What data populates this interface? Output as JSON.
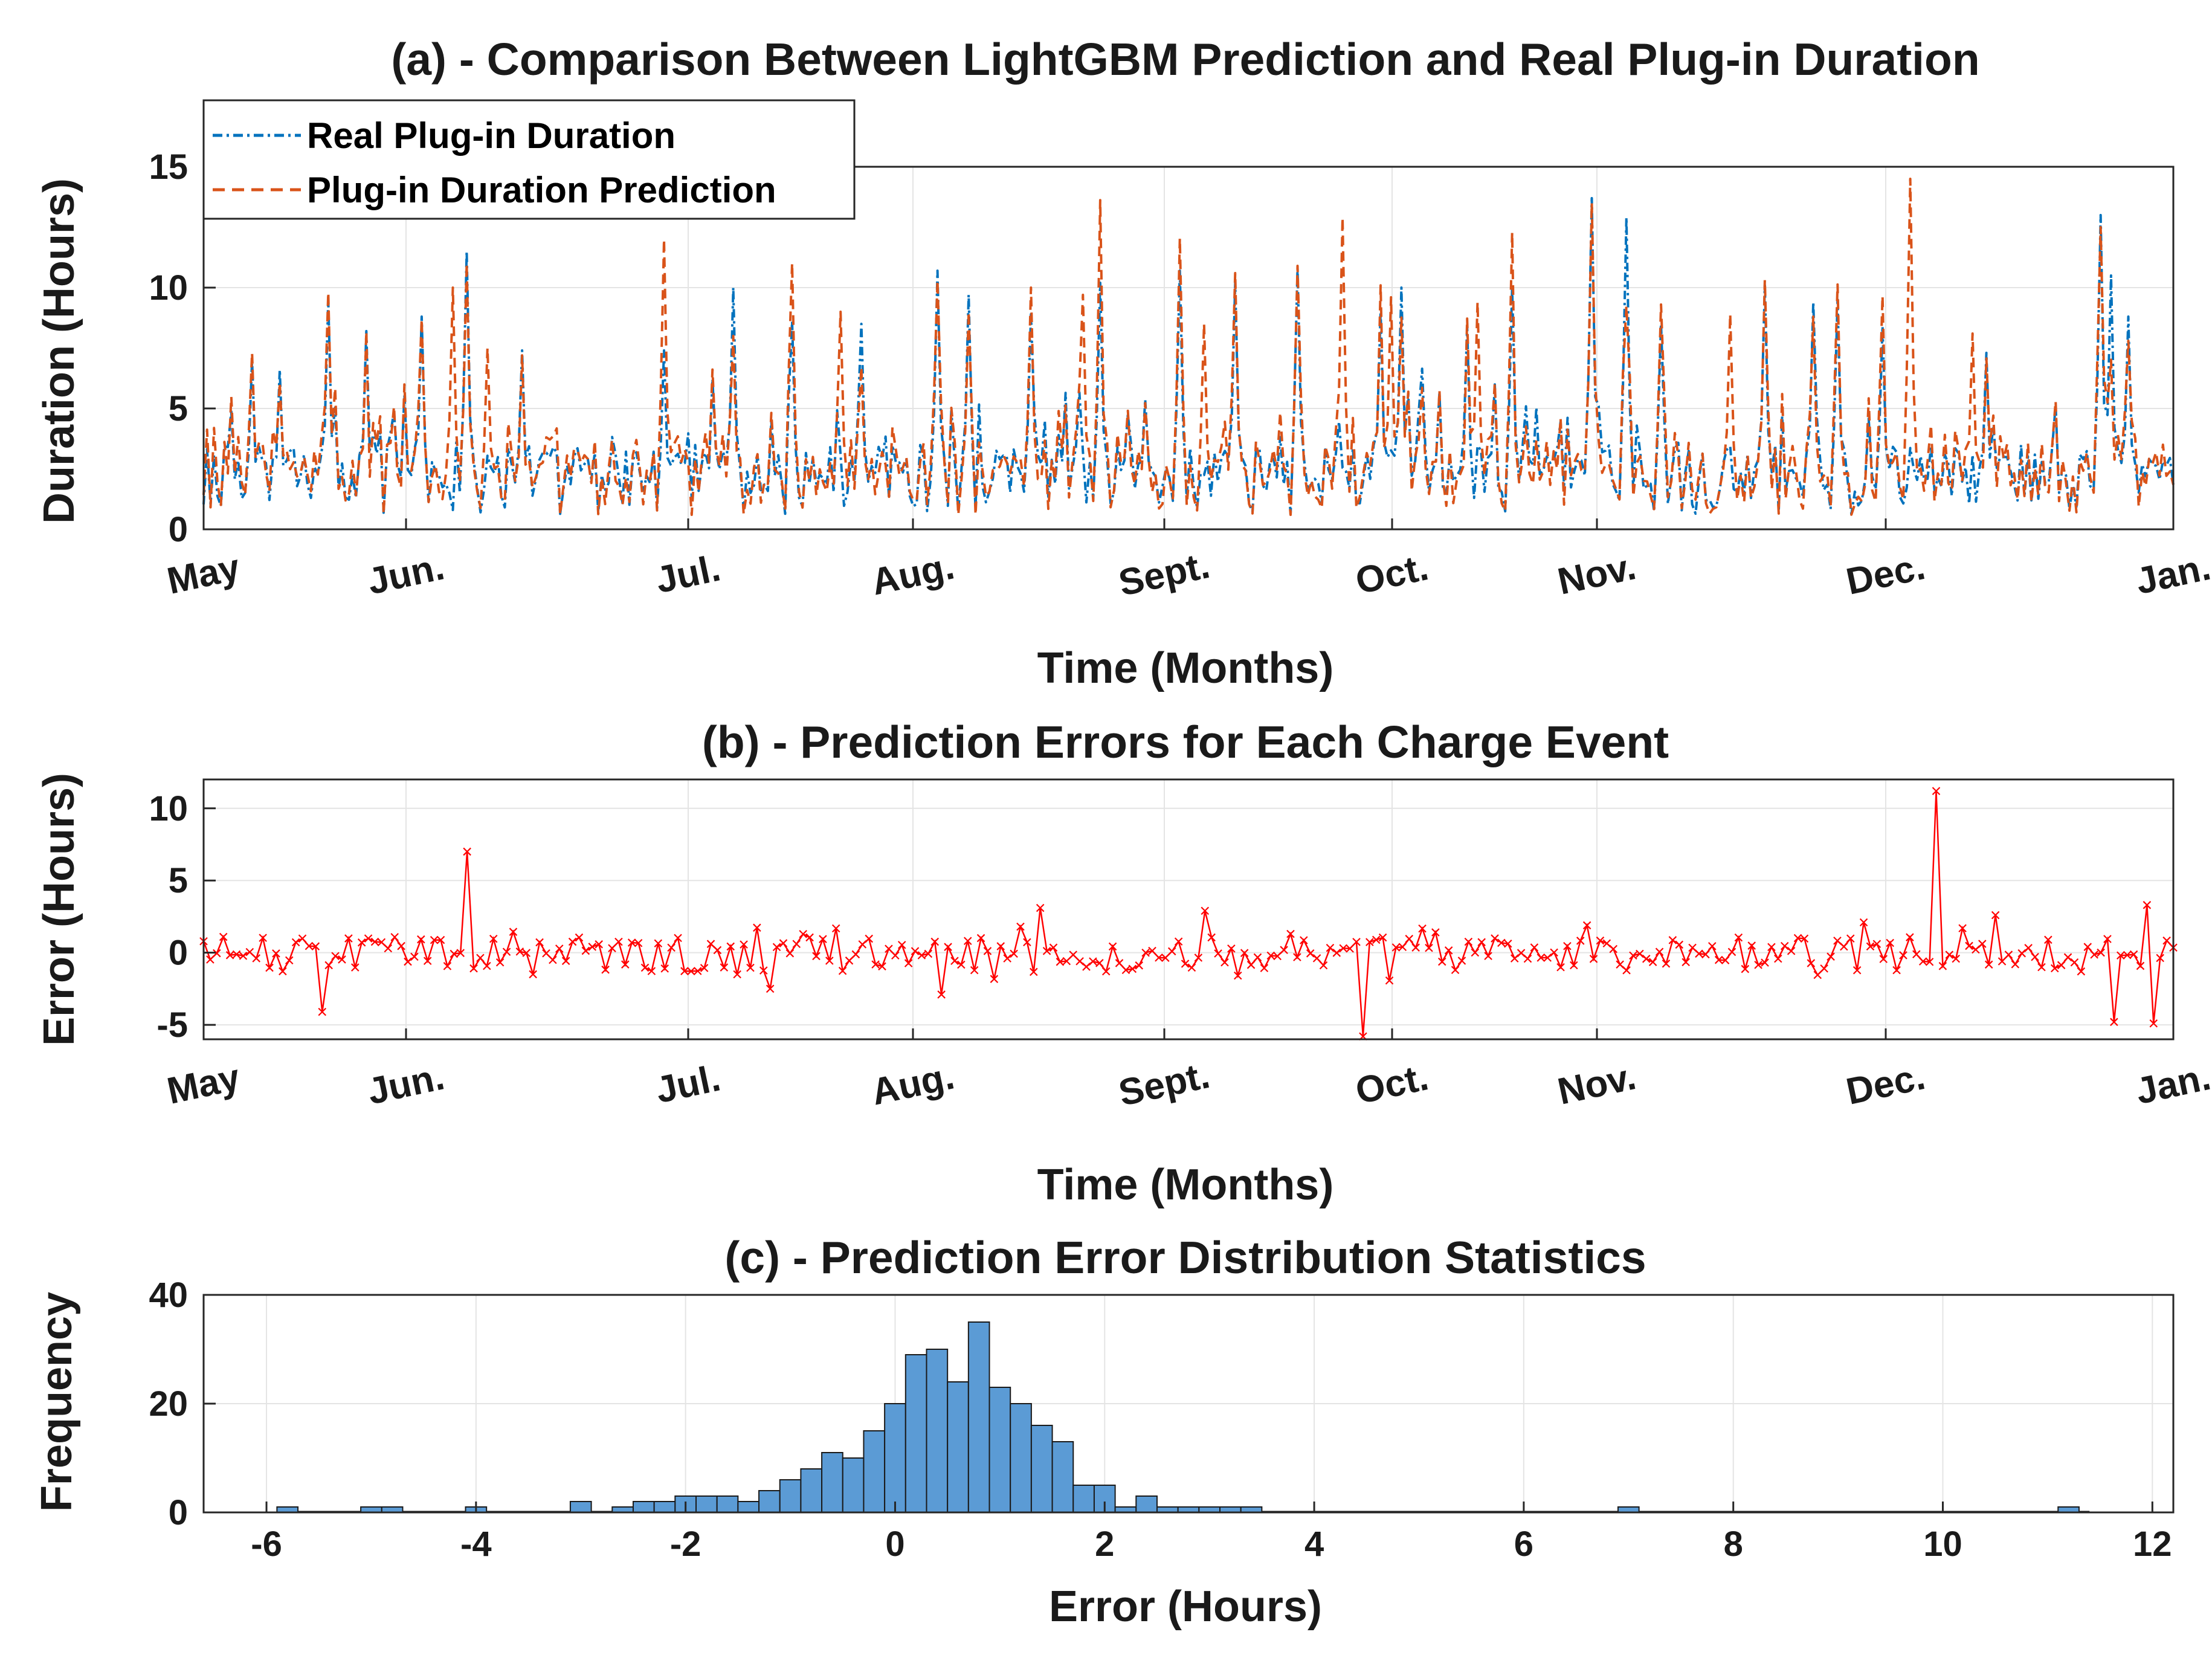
{
  "chart_data": [
    {
      "id": "a",
      "type": "line",
      "title": "(a) - Comparison Between LightGBM Prediction and Real Plug-in Duration",
      "xlabel": "Time (Months)",
      "ylabel": "Duration (Hours)",
      "x_categories": [
        "May",
        "Jun.",
        "Jul.",
        "Aug.",
        "Sept.",
        "Oct.",
        "Nov.",
        "Dec.",
        "Jan."
      ],
      "y_ticks": [
        "0",
        "5",
        "10",
        "15"
      ],
      "ylim": [
        0,
        15
      ],
      "grid": true,
      "legend": {
        "placement": "top-left",
        "entries": [
          "Real Plug-in Duration",
          "Plug-in Duration Prediction"
        ]
      },
      "series": [
        {
          "name": "Real Plug-in Duration",
          "color": "#0072BD",
          "style": "dash-dot",
          "peaks": [
            [
              6.6,
              4.2
            ],
            [
              14,
              7.0
            ],
            [
              22,
              6.6
            ],
            [
              36,
              9.5
            ],
            [
              47,
              8.2
            ],
            [
              63,
              8.8
            ],
            [
              76,
              11.5
            ],
            [
              92,
              7.4
            ],
            [
              133,
              7.4
            ],
            [
              153,
              10.0
            ],
            [
              170,
              8.6
            ],
            [
              190,
              8.5
            ],
            [
              212,
              10.7
            ],
            [
              221,
              9.7
            ],
            [
              239,
              8.9
            ],
            [
              259,
              10.2
            ],
            [
              282,
              10.7
            ],
            [
              298,
              10.2
            ],
            [
              316,
              10.8
            ],
            [
              340,
              9.0
            ],
            [
              346,
              10.0
            ],
            [
              365,
              8.4
            ],
            [
              378,
              10.0
            ],
            [
              401,
              13.7
            ],
            [
              411,
              12.9
            ],
            [
              421,
              8.5
            ],
            [
              451,
              10.1
            ],
            [
              465,
              9.4
            ],
            [
              472,
              9.5
            ],
            [
              485,
              8.4
            ],
            [
              515,
              7.3
            ],
            [
              548,
              13.0
            ],
            [
              551,
              10.5
            ],
            [
              556,
              8.8
            ]
          ],
          "baseline": [
            1.5,
            3.5
          ]
        },
        {
          "name": "Plug-in Duration Prediction",
          "color": "#D95319",
          "style": "dashed",
          "peaks": [
            [
              14,
              7.3
            ],
            [
              36,
              9.8
            ],
            [
              63,
              8.7
            ],
            [
              72,
              10.0
            ],
            [
              76,
              11.0
            ],
            [
              82,
              7.5
            ],
            [
              133,
              12.0
            ],
            [
              153,
              8.0
            ],
            [
              184,
              9.0
            ],
            [
              212,
              10.3
            ],
            [
              221,
              9.0
            ],
            [
              239,
              10.0
            ],
            [
              254,
              9.7
            ],
            [
              289,
              8.5
            ],
            [
              298,
              10.6
            ],
            [
              316,
              10.9
            ],
            [
              329,
              12.9
            ],
            [
              343,
              9.6
            ],
            [
              368,
              9.4
            ],
            [
              401,
              13.5
            ],
            [
              421,
              9.3
            ],
            [
              441,
              8.9
            ],
            [
              465,
              8.8
            ],
            [
              493,
              14.5
            ],
            [
              511,
              8.1
            ],
            [
              548,
              12.5
            ],
            [
              556,
              7.8
            ]
          ],
          "baseline": [
            1.0,
            3.0
          ]
        }
      ]
    },
    {
      "id": "b",
      "type": "line",
      "title": "(b) - Prediction Errors for Each Charge Event",
      "xlabel": "Time (Months)",
      "ylabel": "Error (Hours)",
      "x_categories": [
        "May",
        "Jun.",
        "Jul.",
        "Aug.",
        "Sept.",
        "Oct.",
        "Nov.",
        "Dec.",
        "Jan."
      ],
      "y_ticks": [
        "-5",
        "0",
        "5",
        "10"
      ],
      "ylim": [
        -6,
        12
      ],
      "grid": true,
      "series": [
        {
          "name": "Prediction Error",
          "color": "#FF0000",
          "marker": "x",
          "spikes": [
            [
              35,
              -4.1
            ],
            [
              76,
              7.0
            ],
            [
              163,
              -2.5
            ],
            [
              212,
              -2.9
            ],
            [
              241,
              3.1
            ],
            [
              289,
              2.9
            ],
            [
              335,
              -5.8
            ],
            [
              478,
              2.1
            ],
            [
              500,
              11.2
            ],
            [
              517,
              2.6
            ],
            [
              551,
              -4.8
            ],
            [
              560,
              3.3
            ],
            [
              563,
              -4.9
            ]
          ],
          "baseline": [
            -1.2,
            1.2
          ]
        }
      ]
    },
    {
      "id": "c",
      "type": "bar",
      "title": "(c) - Prediction Error Distribution Statistics",
      "xlabel": "Error (Hours)",
      "ylabel": "Frequency",
      "x_ticks": [
        "-6",
        "-4",
        "-2",
        "0",
        "2",
        "4",
        "6",
        "8",
        "10",
        "12"
      ],
      "y_ticks": [
        "0",
        "20",
        "40"
      ],
      "xlim": [
        -6.6,
        12.2
      ],
      "ylim": [
        0,
        40
      ],
      "grid": true,
      "bin_width": 0.2,
      "bins": [
        [
          -5.8,
          1
        ],
        [
          -5.6,
          0
        ],
        [
          -5.4,
          0
        ],
        [
          -5.2,
          0
        ],
        [
          -5.0,
          1
        ],
        [
          -4.8,
          1
        ],
        [
          -4.6,
          0
        ],
        [
          -4.4,
          0
        ],
        [
          -4.2,
          0
        ],
        [
          -4.0,
          1
        ],
        [
          -3.8,
          0
        ],
        [
          -3.6,
          0
        ],
        [
          -3.4,
          0
        ],
        [
          -3.2,
          0
        ],
        [
          -3.0,
          2
        ],
        [
          -2.8,
          0
        ],
        [
          -2.6,
          1
        ],
        [
          -2.4,
          2
        ],
        [
          -2.2,
          2
        ],
        [
          -2.0,
          3
        ],
        [
          -1.8,
          3
        ],
        [
          -1.6,
          3
        ],
        [
          -1.4,
          2
        ],
        [
          -1.2,
          4
        ],
        [
          -1.0,
          6
        ],
        [
          -0.8,
          8
        ],
        [
          -0.6,
          11
        ],
        [
          -0.4,
          10
        ],
        [
          -0.2,
          15
        ],
        [
          0.0,
          20
        ],
        [
          0.2,
          29
        ],
        [
          0.4,
          30
        ],
        [
          0.6,
          24
        ],
        [
          0.8,
          35
        ],
        [
          1.0,
          23
        ],
        [
          1.2,
          20
        ],
        [
          1.4,
          16
        ],
        [
          1.6,
          13
        ],
        [
          1.8,
          5
        ],
        [
          2.0,
          5
        ],
        [
          2.2,
          1
        ],
        [
          2.4,
          3
        ],
        [
          2.6,
          1
        ],
        [
          2.8,
          1
        ],
        [
          3.0,
          1
        ],
        [
          3.2,
          1
        ],
        [
          3.4,
          1
        ],
        [
          7.0,
          1
        ],
        [
          11.2,
          1
        ]
      ],
      "bar_color": "#5B9BD5"
    }
  ]
}
